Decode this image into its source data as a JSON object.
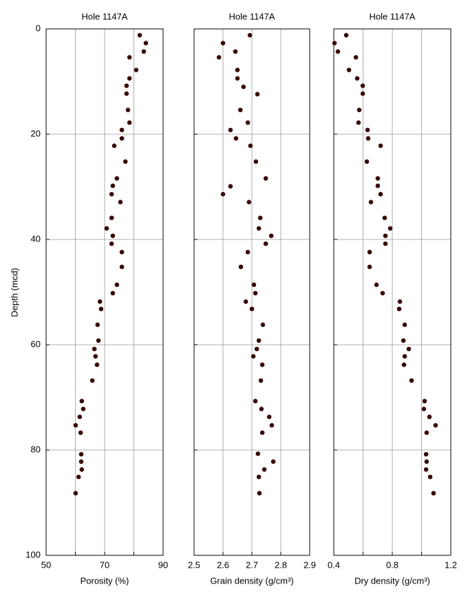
{
  "chart_data": [
    {
      "type": "scatter",
      "title": "Hole 1147A",
      "x_label": "Porosity (%)",
      "y_label": "Depth (mcd)",
      "color": "#3a0a0a",
      "xlim": [
        50,
        90
      ],
      "xticks": [
        50,
        70,
        90
      ],
      "minor_xticks": [
        60,
        80
      ],
      "ylim": [
        0,
        100
      ],
      "yticks": [
        0,
        20,
        40,
        60,
        80,
        100
      ],
      "invert_y": true,
      "show_ytick_labels": true,
      "grid": true,
      "x": [
        82.0,
        84.1,
        83.4,
        78.5,
        80.8,
        78.5,
        77.5,
        77.5,
        78.0,
        78.5,
        75.9,
        75.9,
        73.3,
        77.1,
        74.2,
        72.8,
        72.4,
        75.4,
        72.4,
        70.7,
        72.8,
        72.4,
        75.9,
        75.9,
        74.2,
        72.8,
        68.4,
        68.8,
        67.6,
        67.9,
        66.5,
        66.9,
        67.4,
        65.8,
        62.2,
        62.7,
        61.5,
        60.1,
        61.8,
        62.0,
        62.0,
        62.2,
        61.1,
        60.1
      ],
      "y": [
        1.2,
        2.7,
        4.3,
        5.4,
        7.8,
        9.4,
        10.8,
        12.3,
        15.4,
        17.8,
        19.2,
        20.8,
        22.2,
        25.2,
        28.4,
        29.8,
        31.4,
        32.9,
        35.9,
        37.9,
        39.3,
        40.8,
        42.4,
        45.2,
        48.6,
        50.2,
        51.8,
        53.2,
        56.2,
        59.2,
        60.8,
        62.2,
        63.8,
        66.8,
        70.7,
        72.2,
        73.7,
        75.3,
        76.7,
        80.8,
        82.2,
        83.7,
        85.1,
        88.2
      ]
    },
    {
      "type": "scatter",
      "title": "Hole 1147A",
      "x_label": "Grain density (g/cm³)",
      "color": "#3a0a0a",
      "xlim": [
        2.5,
        2.9
      ],
      "xticks": [
        2.5,
        2.6,
        2.7,
        2.8,
        2.9
      ],
      "ylim": [
        0,
        100
      ],
      "yticks": [
        0,
        20,
        40,
        60,
        80,
        100
      ],
      "invert_y": true,
      "show_ytick_labels": false,
      "grid": true,
      "x": [
        2.693,
        2.6,
        2.643,
        2.586,
        2.65,
        2.65,
        2.671,
        2.719,
        2.66,
        2.686,
        2.626,
        2.645,
        2.695,
        2.714,
        2.748,
        2.626,
        2.6,
        2.69,
        2.729,
        2.724,
        2.767,
        2.748,
        2.686,
        2.662,
        2.707,
        2.712,
        2.679,
        2.7,
        2.738,
        2.724,
        2.717,
        2.705,
        2.736,
        2.731,
        2.712,
        2.733,
        2.76,
        2.769,
        2.736,
        2.721,
        2.774,
        2.743,
        2.724,
        2.726
      ],
      "y": [
        1.2,
        2.7,
        4.3,
        5.4,
        7.8,
        9.4,
        11.0,
        12.4,
        15.4,
        17.8,
        19.2,
        20.8,
        22.2,
        25.2,
        28.4,
        29.9,
        31.4,
        32.9,
        35.9,
        37.9,
        39.3,
        40.8,
        42.4,
        45.2,
        48.6,
        50.2,
        51.8,
        53.2,
        56.2,
        59.2,
        60.8,
        62.2,
        63.8,
        66.8,
        70.7,
        72.2,
        73.7,
        75.3,
        76.7,
        80.7,
        82.2,
        83.7,
        85.1,
        88.2
      ]
    },
    {
      "type": "scatter",
      "title": "Hole 1147A",
      "x_label": "Dry density  (g/cm³)",
      "color": "#3a0a0a",
      "xlim": [
        0.4,
        1.2
      ],
      "xticks": [
        0.4,
        0.8,
        1.2
      ],
      "minor_xticks": [
        0.6,
        1.0
      ],
      "ylim": [
        0,
        100
      ],
      "yticks": [
        0,
        20,
        40,
        60,
        80,
        100
      ],
      "invert_y": true,
      "show_ytick_labels": false,
      "grid": true,
      "x": [
        0.485,
        0.405,
        0.428,
        0.551,
        0.504,
        0.56,
        0.598,
        0.598,
        0.574,
        0.569,
        0.631,
        0.635,
        0.72,
        0.626,
        0.701,
        0.701,
        0.72,
        0.654,
        0.748,
        0.786,
        0.753,
        0.753,
        0.645,
        0.645,
        0.692,
        0.734,
        0.852,
        0.847,
        0.885,
        0.876,
        0.913,
        0.885,
        0.88,
        0.932,
        1.021,
        1.016,
        1.054,
        1.096,
        1.035,
        1.031,
        1.035,
        1.031,
        1.059,
        1.082
      ],
      "y": [
        1.2,
        2.7,
        4.3,
        5.4,
        7.8,
        9.4,
        10.8,
        12.3,
        15.4,
        17.8,
        19.2,
        20.8,
        22.2,
        25.2,
        28.4,
        29.8,
        31.4,
        32.9,
        35.9,
        37.9,
        39.3,
        40.8,
        42.4,
        45.2,
        48.6,
        50.2,
        51.8,
        53.2,
        56.2,
        59.2,
        60.8,
        62.2,
        63.8,
        66.8,
        70.7,
        72.2,
        73.7,
        75.3,
        76.7,
        80.8,
        82.2,
        83.7,
        85.1,
        88.2
      ]
    }
  ]
}
